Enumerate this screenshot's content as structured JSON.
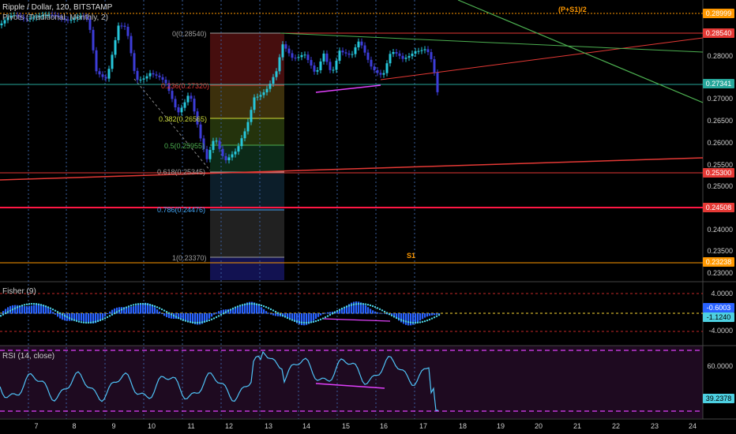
{
  "header": {
    "symbol": "Ripple / Dollar, 120, BITSTAMP",
    "study": "Pivots (Traditional, Monthly, 2)",
    "fisher": "Fisher (9)",
    "rsi": "RSI (14, close)"
  },
  "pivots": {
    "mid": "(P+S1)/2",
    "s1": "S1"
  },
  "fib_levels": [
    {
      "label": "0(0.28540)",
      "color": "#9e9e9e"
    },
    {
      "label": "0.236(0.27320)",
      "color": "#e53935"
    },
    {
      "label": "0.382(0.26565)",
      "color": "#cddc39"
    },
    {
      "label": "0.5(0.25955)",
      "color": "#4caf50"
    },
    {
      "label": "0.618(0.25345)",
      "color": "#9e9e9e"
    },
    {
      "label": "0.786(0.24476)",
      "color": "#42a5f5"
    },
    {
      "label": "1(0.23370)",
      "color": "#9e9e9e"
    }
  ],
  "price_axis": [
    "0.28000",
    "0.27500",
    "0.27000",
    "0.26500",
    "0.26000",
    "0.25500",
    "0.25000",
    "0.24500",
    "0.24000",
    "0.23500",
    "0.23000"
  ],
  "price_tags": [
    {
      "value": "0.28999",
      "color": "#ff9800"
    },
    {
      "value": "0.28540",
      "color": "#e53935"
    },
    {
      "value": "0.27341",
      "color": "#26a69a"
    },
    {
      "value": "0.25300",
      "color": "#e53935"
    },
    {
      "value": "0.24508",
      "color": "#e53935"
    },
    {
      "value": "0.23238",
      "color": "#ff9800"
    }
  ],
  "fisher_axis": [
    "4.0000",
    "-4.0000"
  ],
  "fisher_tags": [
    {
      "value": "-0.6003",
      "color": "#2962ff"
    },
    {
      "value": "-1.1240",
      "color": "#4dd0e1"
    }
  ],
  "rsi_axis": [
    "60.0000"
  ],
  "rsi_tags": [
    {
      "value": "39.2378",
      "color": "#4dd0e1"
    }
  ],
  "x_axis": [
    "7",
    "8",
    "9",
    "10",
    "11",
    "12",
    "13",
    "14",
    "15",
    "16",
    "17",
    "18",
    "19",
    "20",
    "21",
    "22",
    "23",
    "24"
  ],
  "colors": {
    "up": "#26c6da",
    "down": "#3d3dd8",
    "rsi_line": "#4fc3f7",
    "divergence": "#e040fb"
  }
}
